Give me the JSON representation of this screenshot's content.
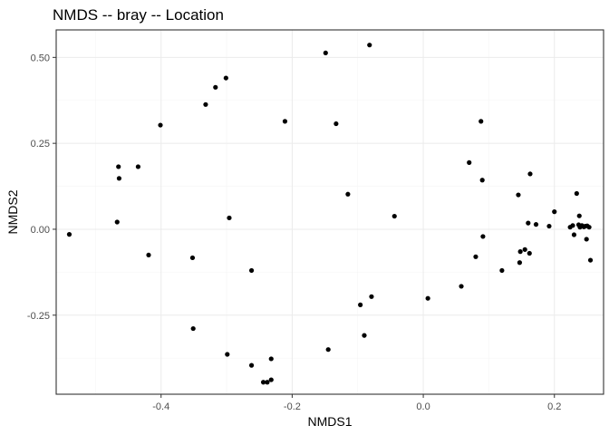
{
  "chart_data": {
    "type": "scatter",
    "title": "NMDS -- bray -- Location",
    "xlabel": "NMDS1",
    "ylabel": "NMDS2",
    "xlim": [
      -0.56,
      0.275
    ],
    "ylim": [
      -0.48,
      0.58
    ],
    "x_ticks": [
      -0.4,
      -0.2,
      0.0,
      0.2
    ],
    "x_tick_labels": [
      "-0.4",
      "-0.2",
      "0.0",
      "0.2"
    ],
    "y_ticks": [
      -0.25,
      0.0,
      0.25,
      0.5
    ],
    "y_tick_labels": [
      "-0.25",
      "0.00",
      "0.25",
      "0.50"
    ],
    "grid": true,
    "legend": "none",
    "point_color": "#000000",
    "points": [
      {
        "x": -0.54,
        "y": -0.015
      },
      {
        "x": -0.465,
        "y": 0.182
      },
      {
        "x": -0.464,
        "y": 0.148
      },
      {
        "x": -0.467,
        "y": 0.021
      },
      {
        "x": -0.435,
        "y": 0.182
      },
      {
        "x": -0.419,
        "y": -0.075
      },
      {
        "x": -0.401,
        "y": 0.303
      },
      {
        "x": -0.352,
        "y": -0.083
      },
      {
        "x": -0.351,
        "y": -0.289
      },
      {
        "x": -0.332,
        "y": 0.363
      },
      {
        "x": -0.317,
        "y": 0.413
      },
      {
        "x": -0.301,
        "y": 0.44
      },
      {
        "x": -0.299,
        "y": -0.364
      },
      {
        "x": -0.296,
        "y": 0.033
      },
      {
        "x": -0.262,
        "y": -0.12
      },
      {
        "x": -0.262,
        "y": -0.396
      },
      {
        "x": -0.244,
        "y": -0.445
      },
      {
        "x": -0.238,
        "y": -0.445
      },
      {
        "x": -0.232,
        "y": -0.377
      },
      {
        "x": -0.232,
        "y": -0.438
      },
      {
        "x": -0.211,
        "y": 0.314
      },
      {
        "x": -0.149,
        "y": 0.513
      },
      {
        "x": -0.145,
        "y": -0.35
      },
      {
        "x": -0.133,
        "y": 0.307
      },
      {
        "x": -0.115,
        "y": 0.102
      },
      {
        "x": -0.096,
        "y": -0.22
      },
      {
        "x": -0.09,
        "y": -0.309
      },
      {
        "x": -0.082,
        "y": 0.536
      },
      {
        "x": -0.079,
        "y": -0.196
      },
      {
        "x": -0.044,
        "y": 0.038
      },
      {
        "x": 0.007,
        "y": -0.201
      },
      {
        "x": 0.058,
        "y": -0.166
      },
      {
        "x": 0.07,
        "y": 0.194
      },
      {
        "x": 0.08,
        "y": -0.08
      },
      {
        "x": 0.088,
        "y": 0.314
      },
      {
        "x": 0.09,
        "y": 0.143
      },
      {
        "x": 0.091,
        "y": -0.021
      },
      {
        "x": 0.12,
        "y": -0.12
      },
      {
        "x": 0.145,
        "y": 0.1
      },
      {
        "x": 0.147,
        "y": -0.097
      },
      {
        "x": 0.148,
        "y": -0.065
      },
      {
        "x": 0.155,
        "y": -0.059
      },
      {
        "x": 0.16,
        "y": 0.018
      },
      {
        "x": 0.162,
        "y": -0.07
      },
      {
        "x": 0.163,
        "y": 0.161
      },
      {
        "x": 0.172,
        "y": 0.014
      },
      {
        "x": 0.192,
        "y": 0.009
      },
      {
        "x": 0.2,
        "y": 0.051
      },
      {
        "x": 0.224,
        "y": 0.006
      },
      {
        "x": 0.228,
        "y": 0.011
      },
      {
        "x": 0.23,
        "y": -0.016
      },
      {
        "x": 0.234,
        "y": 0.104
      },
      {
        "x": 0.237,
        "y": 0.013
      },
      {
        "x": 0.238,
        "y": 0.039
      },
      {
        "x": 0.239,
        "y": 0.006
      },
      {
        "x": 0.242,
        "y": 0.011
      },
      {
        "x": 0.245,
        "y": 0.007
      },
      {
        "x": 0.247,
        "y": 0.009
      },
      {
        "x": 0.249,
        "y": -0.029
      },
      {
        "x": 0.25,
        "y": 0.01
      },
      {
        "x": 0.253,
        "y": 0.006
      },
      {
        "x": 0.255,
        "y": -0.09
      }
    ]
  }
}
